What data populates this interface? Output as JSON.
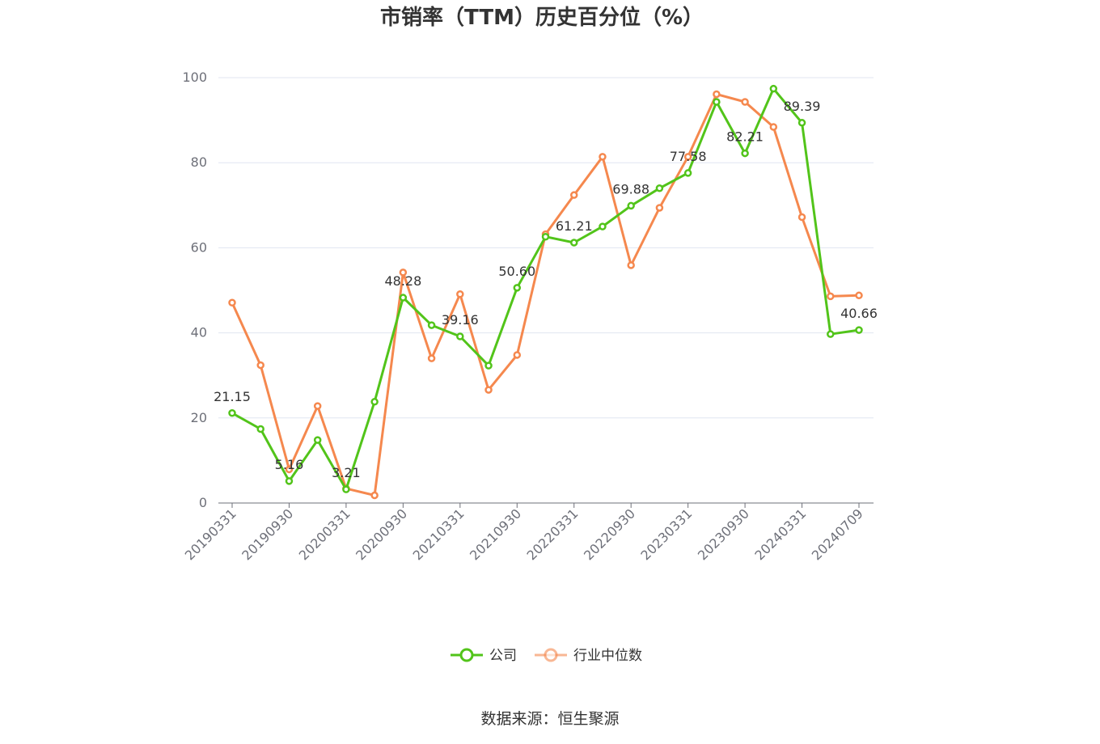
{
  "chart_data": {
    "type": "line",
    "title": "市销率（TTM）历史百分位（%）",
    "xlabel": "",
    "ylabel": "",
    "ylim": [
      0,
      100
    ],
    "yticks": [
      0,
      20,
      40,
      60,
      80,
      100
    ],
    "grid": true,
    "legend_position": "bottom",
    "x": [
      "20190331",
      "20190630",
      "20190930",
      "20191231",
      "20200331",
      "20200630",
      "20200930",
      "20201231",
      "20210331",
      "20210630",
      "20210930",
      "20211231",
      "20220331",
      "20220630",
      "20220930",
      "20221231",
      "20230331",
      "20230630",
      "20230930",
      "20231231",
      "20240331",
      "20240630",
      "20240709"
    ],
    "x_tick_labels": [
      "20190331",
      "20190930",
      "20200331",
      "20200930",
      "20210331",
      "20210930",
      "20220331",
      "20220930",
      "20230331",
      "20230930",
      "20240331",
      "20240709"
    ],
    "series": [
      {
        "name": "公司",
        "color": "#52c41a",
        "values": [
          21.15,
          17.4,
          5.16,
          14.8,
          3.21,
          23.8,
          48.28,
          41.8,
          39.16,
          32.3,
          50.6,
          62.6,
          61.21,
          65.0,
          69.88,
          74.0,
          77.58,
          94.3,
          82.21,
          97.4,
          89.39,
          39.7,
          40.66
        ],
        "labels": [
          "21.15",
          "",
          "5.16",
          "",
          "3.21",
          "",
          "48.28",
          "",
          "39.16",
          "",
          "50.60",
          "",
          "61.21",
          "",
          "69.88",
          "",
          "77.58",
          "",
          "82.21",
          "",
          "89.39",
          "",
          "40.66"
        ]
      },
      {
        "name": "行业中位数",
        "color": "#f5884e",
        "values": [
          47.1,
          32.4,
          7.9,
          22.8,
          3.4,
          1.8,
          54.2,
          34.0,
          49.1,
          26.6,
          34.8,
          63.2,
          72.4,
          81.4,
          55.9,
          69.4,
          81.4,
          96.1,
          94.3,
          88.4,
          67.2,
          48.6,
          48.8
        ]
      }
    ]
  },
  "legend": {
    "company": "公司",
    "industry": "行业中位数"
  },
  "source": "数据来源：恒生聚源"
}
